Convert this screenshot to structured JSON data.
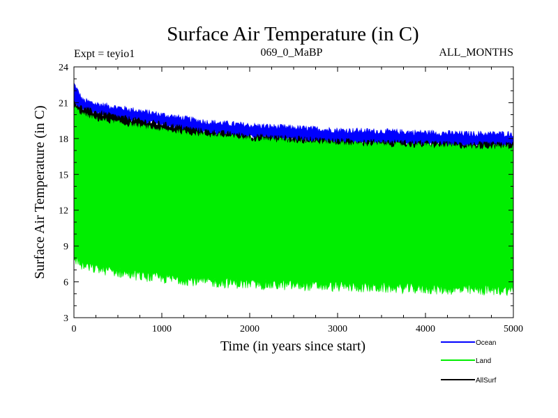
{
  "chart_data": {
    "type": "line",
    "title": "Surface Air Temperature (in C)",
    "subtitle_left": "Expt = teyio1",
    "subtitle_center": "069_0_MaBP",
    "subtitle_right": "ALL_MONTHS",
    "xlabel": "Time (in years since start)",
    "ylabel": "Surface Air Temperature (in C)",
    "xlim": [
      0,
      5000
    ],
    "ylim": [
      3,
      24
    ],
    "xticks": [
      0,
      1000,
      2000,
      3000,
      4000,
      5000
    ],
    "yticks": [
      3,
      6,
      9,
      12,
      15,
      18,
      21,
      24
    ],
    "grid": false,
    "legend_position": "bottom-right",
    "series": [
      {
        "name": "Ocean",
        "color": "#0000ff",
        "x": [
          0,
          100,
          250,
          500,
          750,
          1000,
          1500,
          2000,
          2500,
          3000,
          3500,
          4000,
          4500,
          5000
        ],
        "upper": [
          22.6,
          21.2,
          20.9,
          20.6,
          20.3,
          20.0,
          19.4,
          19.1,
          18.9,
          18.7,
          18.6,
          18.5,
          18.4,
          18.4
        ],
        "lower": [
          20.8,
          20.4,
          20.1,
          19.7,
          19.4,
          19.1,
          18.5,
          18.1,
          17.9,
          17.7,
          17.6,
          17.5,
          17.4,
          17.4
        ]
      },
      {
        "name": "Land",
        "color": "#00ee00",
        "x": [
          0,
          100,
          250,
          500,
          750,
          1000,
          1500,
          2000,
          2500,
          3000,
          3500,
          4000,
          4500,
          5000
        ],
        "upper": [
          20.6,
          20.0,
          19.6,
          19.3,
          19.0,
          18.7,
          18.3,
          18.0,
          17.8,
          17.6,
          17.5,
          17.4,
          17.3,
          17.3
        ],
        "lower": [
          8.0,
          7.3,
          7.1,
          6.8,
          6.5,
          6.3,
          6.0,
          5.8,
          5.7,
          5.6,
          5.5,
          5.4,
          5.3,
          5.3
        ]
      },
      {
        "name": "AllSurf",
        "color": "#000000",
        "x": [
          0,
          100,
          250,
          500,
          750,
          1000,
          1500,
          2000,
          2500,
          3000,
          3500,
          4000,
          4500,
          5000
        ],
        "upper": [
          21.0,
          20.5,
          20.2,
          19.8,
          19.5,
          19.2,
          18.6,
          18.2,
          18.0,
          17.8,
          17.7,
          17.6,
          17.5,
          17.5
        ],
        "lower": [
          19.8,
          19.4,
          19.1,
          18.8,
          18.5,
          18.2,
          17.7,
          17.4,
          17.2,
          17.0,
          16.9,
          16.8,
          16.7,
          16.7
        ]
      }
    ]
  }
}
